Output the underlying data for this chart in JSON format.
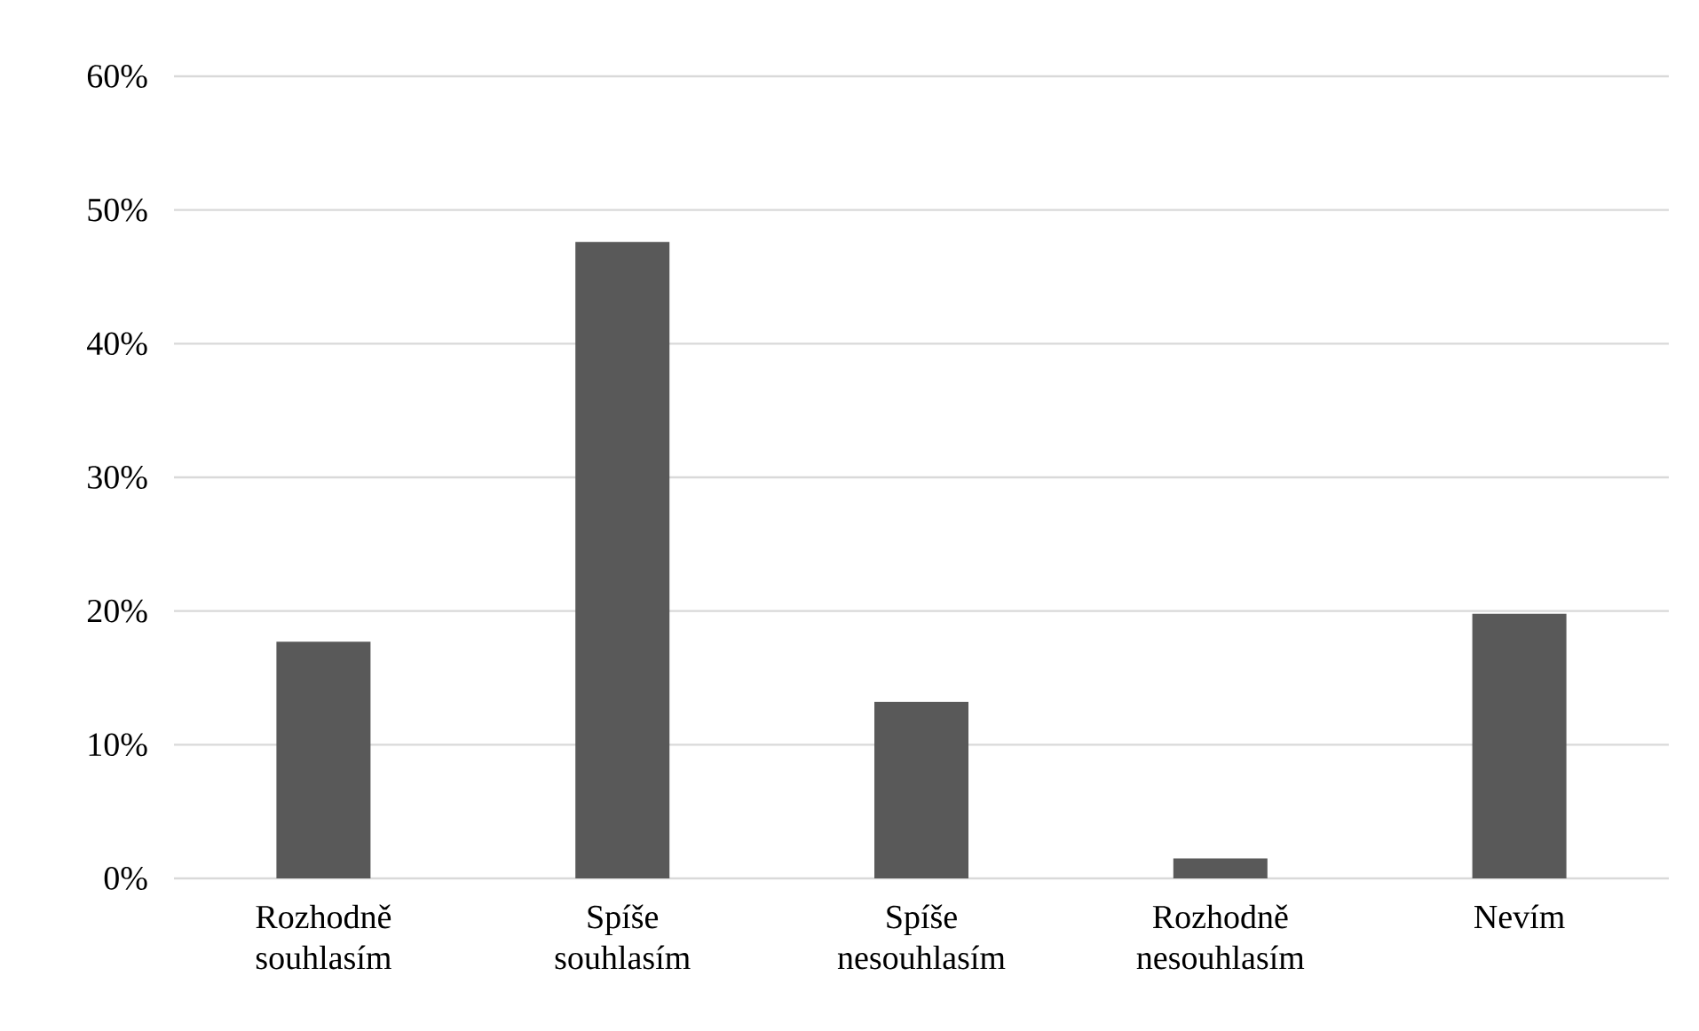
{
  "chart_data": {
    "type": "bar",
    "categories": [
      "Rozhodně souhlasím",
      "Spíše souhlasím",
      "Spíše nesouhlasím",
      "Rozhodně nesouhlasím",
      "Nevím"
    ],
    "values": [
      17.7,
      47.6,
      13.2,
      1.5,
      19.8
    ],
    "color": "#595959",
    "ylim": [
      0,
      60
    ],
    "yticks": [
      {
        "value": 0,
        "label": "0%"
      },
      {
        "value": 10,
        "label": "10%"
      },
      {
        "value": 20,
        "label": "20%"
      },
      {
        "value": 30,
        "label": "30%"
      },
      {
        "value": 40,
        "label": "40%"
      },
      {
        "value": 50,
        "label": "50%"
      },
      {
        "value": 60,
        "label": "60%"
      }
    ],
    "grid": "y"
  }
}
